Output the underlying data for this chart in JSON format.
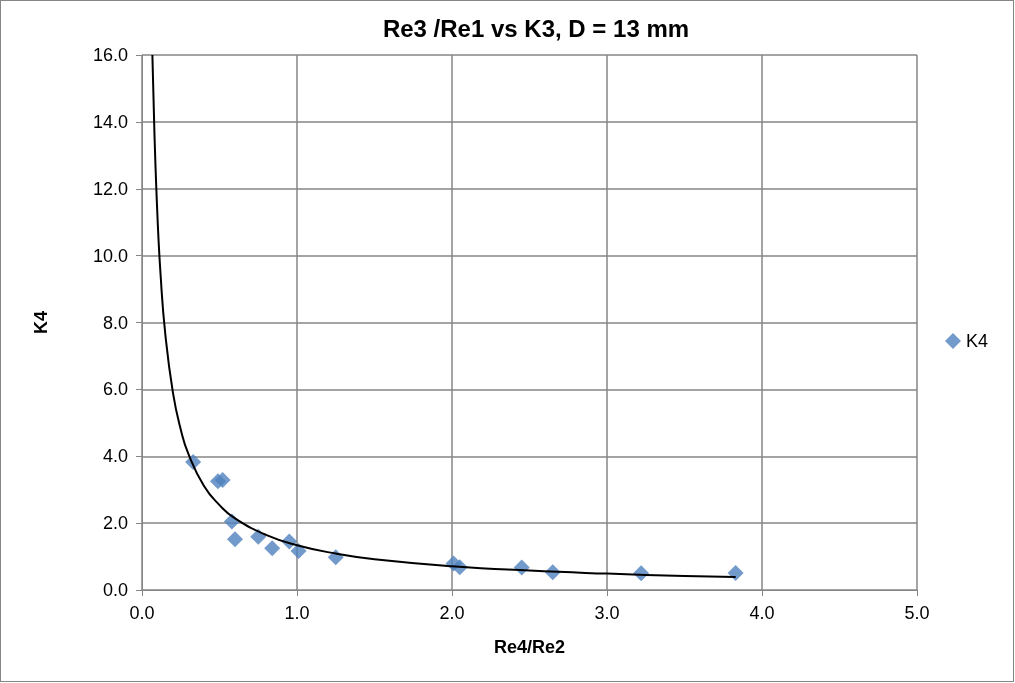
{
  "chart_data": {
    "type": "scatter",
    "title": "Re3 /Re1 vs K3, D = 13 mm",
    "xlabel": "Re4/Re2",
    "ylabel": "K4",
    "xlim": [
      0,
      5
    ],
    "ylim": [
      0,
      16
    ],
    "xticks": [
      {
        "value": 0,
        "label": "0.0"
      },
      {
        "value": 1,
        "label": "1.0"
      },
      {
        "value": 2,
        "label": "2.0"
      },
      {
        "value": 3,
        "label": "3.0"
      },
      {
        "value": 4,
        "label": "4.0"
      },
      {
        "value": 5,
        "label": "5.0"
      }
    ],
    "yticks": [
      {
        "value": 0,
        "label": "0.0"
      },
      {
        "value": 2,
        "label": "2.0"
      },
      {
        "value": 4,
        "label": "4.0"
      },
      {
        "value": 6,
        "label": "6.0"
      },
      {
        "value": 8,
        "label": "8.0"
      },
      {
        "value": 10,
        "label": "10.0"
      },
      {
        "value": 12,
        "label": "12.0"
      },
      {
        "value": 14,
        "label": "14.0"
      },
      {
        "value": 16,
        "label": "16.0"
      }
    ],
    "grid": true,
    "legend": "right",
    "marker": "diamond",
    "series": [
      {
        "name": "K4",
        "color": "#4f81bd",
        "x": [
          0.33,
          0.49,
          0.52,
          0.58,
          0.6,
          0.75,
          0.84,
          0.95,
          1.01,
          1.25,
          2.01,
          2.05,
          2.45,
          2.65,
          3.22,
          3.83
        ],
        "values": [
          3.83,
          3.25,
          3.29,
          2.05,
          1.52,
          1.59,
          1.25,
          1.45,
          1.17,
          0.98,
          0.79,
          0.68,
          0.67,
          0.53,
          0.5,
          0.51
        ]
      },
      {
        "type": "line",
        "color": "#000000",
        "marker": "none",
        "line_style": "solid",
        "x": [
          0.067,
          0.08,
          0.1,
          0.12,
          0.15,
          0.2,
          0.25,
          0.3,
          0.4,
          0.5,
          0.6,
          0.8,
          1.0,
          1.25,
          1.5,
          2.0,
          2.5,
          3.0,
          3.5,
          3.83
        ],
        "values": [
          16.0,
          13.7,
          11.15,
          9.42,
          7.67,
          5.89,
          4.8,
          4.06,
          3.11,
          2.54,
          2.14,
          1.65,
          1.34,
          1.09,
          0.92,
          0.71,
          0.58,
          0.49,
          0.42,
          0.39
        ]
      }
    ]
  }
}
